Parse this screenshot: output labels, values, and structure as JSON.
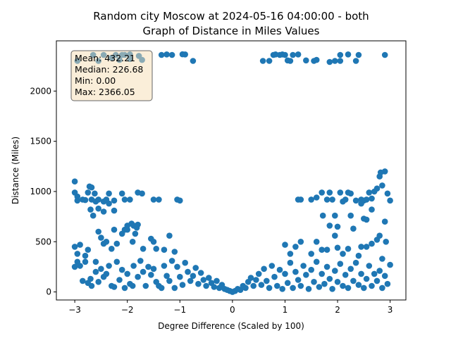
{
  "chart_data": {
    "type": "scatter",
    "title": "Random city Moscow at 2024-05-16 04:00:00  - both",
    "subtitle": "Graph of Distance in Miles Values",
    "xlabel": "Degree Difference (Scaled by 100)",
    "ylabel": "Distance (Miles)",
    "xlim": [
      -3.35,
      3.3
    ],
    "ylim": [
      -80,
      2500
    ],
    "xticks": [
      "−3",
      "−2",
      "−1",
      "0",
      "1",
      "2",
      "3"
    ],
    "yticks": [
      "0",
      "500",
      "1000",
      "1500",
      "2000"
    ],
    "grid": false,
    "marker_color": "#1f77b4",
    "stats_box": {
      "lines": [
        "Mean: 432.21",
        "Median: 226.68",
        "Min: 0.00",
        "Max: 2366.05"
      ],
      "position": "top-left",
      "facecolor": "#f5deb3"
    },
    "series": [
      {
        "values": [
          [
            -2.95,
            2300
          ],
          [
            -2.65,
            2360
          ],
          [
            -2.55,
            2300
          ],
          [
            -2.45,
            2360
          ],
          [
            -2.3,
            2330
          ],
          [
            -2.22,
            2360
          ],
          [
            -2.15,
            2310
          ],
          [
            -2.1,
            2360
          ],
          [
            -2.05,
            2360
          ],
          [
            -1.95,
            2320
          ],
          [
            -1.95,
            2365
          ],
          [
            -1.78,
            2350
          ],
          [
            -1.72,
            2310
          ],
          [
            -1.35,
            2360
          ],
          [
            -1.25,
            2365
          ],
          [
            -1.15,
            2360
          ],
          [
            -0.95,
            2366
          ],
          [
            -0.9,
            2365
          ],
          [
            -0.75,
            2300
          ],
          [
            0.58,
            2300
          ],
          [
            0.7,
            2300
          ],
          [
            0.78,
            2360
          ],
          [
            0.82,
            2365
          ],
          [
            0.9,
            2360
          ],
          [
            0.95,
            2365
          ],
          [
            1.0,
            2360
          ],
          [
            1.05,
            2305
          ],
          [
            1.1,
            2300
          ],
          [
            1.15,
            2360
          ],
          [
            1.25,
            2365
          ],
          [
            1.4,
            2305
          ],
          [
            1.55,
            2300
          ],
          [
            1.6,
            2310
          ],
          [
            1.85,
            2290
          ],
          [
            1.95,
            2300
          ],
          [
            2.05,
            2360
          ],
          [
            2.05,
            2300
          ],
          [
            2.2,
            2365
          ],
          [
            2.35,
            2300
          ],
          [
            2.4,
            2360
          ],
          [
            2.9,
            2360
          ],
          [
            -3.0,
            1100
          ],
          [
            -3.0,
            990
          ],
          [
            -2.95,
            950
          ],
          [
            -2.95,
            910
          ],
          [
            -2.85,
            920
          ],
          [
            -2.8,
            915
          ],
          [
            -2.75,
            990
          ],
          [
            -2.72,
            1050
          ],
          [
            -2.68,
            1040
          ],
          [
            -2.68,
            920
          ],
          [
            -2.62,
            980
          ],
          [
            -2.6,
            900
          ],
          [
            -2.55,
            920
          ],
          [
            -2.45,
            900
          ],
          [
            -2.4,
            920
          ],
          [
            -2.35,
            980
          ],
          [
            -2.25,
            910
          ],
          [
            -2.1,
            980
          ],
          [
            -2.05,
            920
          ],
          [
            -1.95,
            920
          ],
          [
            -1.8,
            990
          ],
          [
            -1.72,
            980
          ],
          [
            -1.5,
            920
          ],
          [
            -1.4,
            920
          ],
          [
            -1.05,
            920
          ],
          [
            -1.0,
            910
          ],
          [
            -2.7,
            820
          ],
          [
            -2.65,
            760
          ],
          [
            -2.55,
            830
          ],
          [
            -2.45,
            800
          ],
          [
            -2.35,
            880
          ],
          [
            -2.25,
            810
          ],
          [
            -2.05,
            620
          ],
          [
            -2.0,
            660
          ],
          [
            -1.92,
            680
          ],
          [
            -1.88,
            660
          ],
          [
            -1.82,
            640
          ],
          [
            -1.8,
            670
          ],
          [
            1.25,
            920
          ],
          [
            1.3,
            920
          ],
          [
            1.5,
            920
          ],
          [
            1.6,
            940
          ],
          [
            1.7,
            990
          ],
          [
            1.8,
            920
          ],
          [
            1.85,
            990
          ],
          [
            1.9,
            920
          ],
          [
            2.05,
            990
          ],
          [
            2.15,
            920
          ],
          [
            2.2,
            990
          ],
          [
            2.25,
            980
          ],
          [
            2.35,
            910
          ],
          [
            2.45,
            920
          ],
          [
            2.5,
            910
          ],
          [
            2.55,
            920
          ],
          [
            2.6,
            990
          ],
          [
            2.65,
            930
          ],
          [
            2.7,
            1000
          ],
          [
            2.75,
            1030
          ],
          [
            2.8,
            1150
          ],
          [
            2.82,
            1190
          ],
          [
            2.85,
            1060
          ],
          [
            2.9,
            1200
          ],
          [
            2.95,
            980
          ],
          [
            3.0,
            910
          ],
          [
            1.72,
            760
          ],
          [
            1.85,
            660
          ],
          [
            1.95,
            760
          ],
          [
            2.0,
            650
          ],
          [
            2.1,
            900
          ],
          [
            2.25,
            760
          ],
          [
            2.45,
            880
          ],
          [
            2.5,
            730
          ],
          [
            2.55,
            720
          ],
          [
            2.65,
            820
          ],
          [
            2.9,
            700
          ],
          [
            -3.0,
            450
          ],
          [
            -2.95,
            380
          ],
          [
            -2.9,
            470
          ],
          [
            -2.8,
            360
          ],
          [
            -2.75,
            420
          ],
          [
            -2.6,
            300
          ],
          [
            -2.55,
            600
          ],
          [
            -2.5,
            540
          ],
          [
            -2.45,
            480
          ],
          [
            -2.4,
            500
          ],
          [
            -2.3,
            430
          ],
          [
            -2.25,
            620
          ],
          [
            -2.2,
            480
          ],
          [
            -2.1,
            580
          ],
          [
            -2.0,
            620
          ],
          [
            -1.9,
            500
          ],
          [
            -1.85,
            580
          ],
          [
            -1.7,
            430
          ],
          [
            -1.55,
            530
          ],
          [
            -1.5,
            500
          ],
          [
            -1.45,
            430
          ],
          [
            -1.3,
            420
          ],
          [
            -1.2,
            560
          ],
          [
            -1.1,
            400
          ],
          [
            1.0,
            470
          ],
          [
            1.1,
            380
          ],
          [
            1.2,
            450
          ],
          [
            1.3,
            500
          ],
          [
            1.5,
            380
          ],
          [
            1.6,
            500
          ],
          [
            1.7,
            420
          ],
          [
            1.8,
            420
          ],
          [
            1.95,
            560
          ],
          [
            2.0,
            440
          ],
          [
            2.1,
            380
          ],
          [
            2.2,
            430
          ],
          [
            2.3,
            630
          ],
          [
            2.4,
            360
          ],
          [
            2.45,
            450
          ],
          [
            2.55,
            450
          ],
          [
            2.65,
            480
          ],
          [
            2.75,
            520
          ],
          [
            2.8,
            560
          ],
          [
            2.85,
            330
          ],
          [
            2.92,
            500
          ],
          [
            -3.0,
            250
          ],
          [
            -2.95,
            300
          ],
          [
            -2.9,
            260
          ],
          [
            -2.85,
            110
          ],
          [
            -2.8,
            300
          ],
          [
            -2.75,
            90
          ],
          [
            -2.7,
            130
          ],
          [
            -2.68,
            60
          ],
          [
            -2.6,
            200
          ],
          [
            -2.55,
            100
          ],
          [
            -2.5,
            230
          ],
          [
            -2.45,
            150
          ],
          [
            -2.4,
            180
          ],
          [
            -2.35,
            260
          ],
          [
            -2.3,
            60
          ],
          [
            -2.25,
            50
          ],
          [
            -2.2,
            300
          ],
          [
            -2.15,
            120
          ],
          [
            -2.1,
            220
          ],
          [
            -2.05,
            40
          ],
          [
            -2.0,
            180
          ],
          [
            -1.95,
            80
          ],
          [
            -1.9,
            60
          ],
          [
            -1.88,
            260
          ],
          [
            -1.8,
            150
          ],
          [
            -1.75,
            310
          ],
          [
            -1.7,
            200
          ],
          [
            -1.65,
            60
          ],
          [
            -1.6,
            250
          ],
          [
            -1.55,
            170
          ],
          [
            -1.5,
            230
          ],
          [
            -1.45,
            100
          ],
          [
            -1.4,
            60
          ],
          [
            -1.35,
            40
          ],
          [
            -1.3,
            260
          ],
          [
            -1.25,
            160
          ],
          [
            -1.2,
            110
          ],
          [
            -1.15,
            310
          ],
          [
            -1.1,
            40
          ],
          [
            -1.05,
            250
          ],
          [
            -1.0,
            150
          ],
          [
            -0.95,
            70
          ],
          [
            -0.9,
            290
          ],
          [
            -0.85,
            200
          ],
          [
            -0.8,
            110
          ],
          [
            -0.75,
            160
          ],
          [
            -0.7,
            240
          ],
          [
            -0.65,
            80
          ],
          [
            -0.6,
            190
          ],
          [
            -0.55,
            120
          ],
          [
            -0.5,
            60
          ],
          [
            -0.45,
            140
          ],
          [
            -0.4,
            90
          ],
          [
            -0.35,
            50
          ],
          [
            -0.3,
            110
          ],
          [
            -0.25,
            40
          ],
          [
            -0.2,
            70
          ],
          [
            -0.15,
            30
          ],
          [
            -0.1,
            20
          ],
          [
            -0.05,
            10
          ],
          [
            0.0,
            0
          ],
          [
            0.05,
            10
          ],
          [
            0.1,
            30
          ],
          [
            0.15,
            20
          ],
          [
            0.2,
            60
          ],
          [
            0.25,
            40
          ],
          [
            0.3,
            100
          ],
          [
            0.35,
            140
          ],
          [
            0.4,
            60
          ],
          [
            0.45,
            120
          ],
          [
            0.5,
            180
          ],
          [
            0.55,
            70
          ],
          [
            0.6,
            230
          ],
          [
            0.65,
            110
          ],
          [
            0.7,
            40
          ],
          [
            0.75,
            260
          ],
          [
            0.8,
            150
          ],
          [
            0.85,
            60
          ],
          [
            0.9,
            220
          ],
          [
            0.95,
            30
          ],
          [
            1.0,
            180
          ],
          [
            1.05,
            90
          ],
          [
            1.1,
            290
          ],
          [
            1.15,
            40
          ],
          [
            1.2,
            200
          ],
          [
            1.25,
            120
          ],
          [
            1.3,
            60
          ],
          [
            1.35,
            260
          ],
          [
            1.4,
            170
          ],
          [
            1.45,
            30
          ],
          [
            1.5,
            220
          ],
          [
            1.55,
            100
          ],
          [
            1.6,
            300
          ],
          [
            1.65,
            50
          ],
          [
            1.7,
            180
          ],
          [
            1.75,
            80
          ],
          [
            1.8,
            250
          ],
          [
            1.85,
            130
          ],
          [
            1.9,
            30
          ],
          [
            1.95,
            210
          ],
          [
            2.0,
            100
          ],
          [
            2.05,
            280
          ],
          [
            2.1,
            60
          ],
          [
            2.15,
            170
          ],
          [
            2.2,
            40
          ],
          [
            2.25,
            230
          ],
          [
            2.3,
            110
          ],
          [
            2.35,
            290
          ],
          [
            2.4,
            70
          ],
          [
            2.45,
            180
          ],
          [
            2.5,
            40
          ],
          [
            2.55,
            130
          ],
          [
            2.6,
            260
          ],
          [
            2.65,
            60
          ],
          [
            2.7,
            180
          ],
          [
            2.75,
            110
          ],
          [
            2.8,
            210
          ],
          [
            2.85,
            40
          ],
          [
            2.9,
            160
          ],
          [
            2.95,
            80
          ],
          [
            3.0,
            270
          ]
        ]
      }
    ]
  }
}
